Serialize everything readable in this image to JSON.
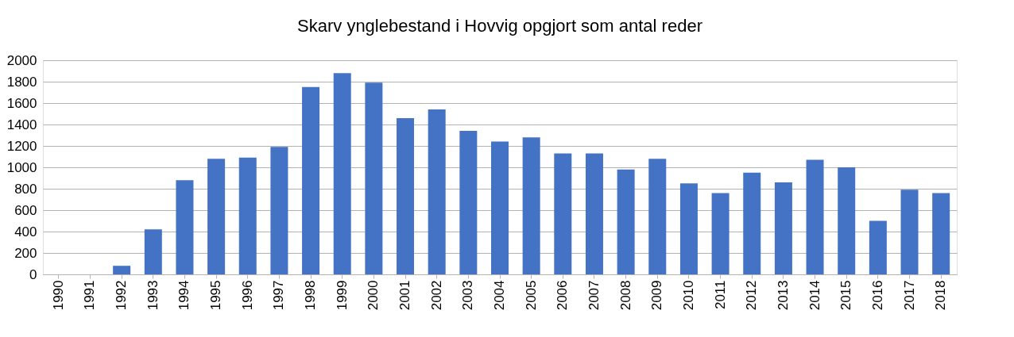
{
  "chart_data": {
    "type": "bar",
    "title": "Skarv ynglebestand i Hovvig opgjort som antal reder",
    "categories": [
      "1990",
      "1991",
      "1992",
      "1993",
      "1994",
      "1995",
      "1996",
      "1997",
      "1998",
      "1999",
      "2000",
      "2001",
      "2002",
      "2003",
      "2004",
      "2005",
      "2006",
      "2007",
      "2008",
      "2009",
      "2010",
      "2011",
      "2012",
      "2013",
      "2014",
      "2015",
      "2016",
      "2017",
      "2018"
    ],
    "values": [
      0,
      0,
      80,
      420,
      880,
      1080,
      1090,
      1190,
      1750,
      1880,
      1790,
      1460,
      1540,
      1340,
      1240,
      1280,
      1130,
      1130,
      980,
      1080,
      850,
      760,
      950,
      860,
      1070,
      1000,
      500,
      790,
      760
    ],
    "color": "#4472c4",
    "ylim": [
      0,
      2000
    ],
    "yticks": [
      0,
      200,
      400,
      600,
      800,
      1000,
      1200,
      1400,
      1600,
      1800,
      2000
    ],
    "grid": "y"
  }
}
